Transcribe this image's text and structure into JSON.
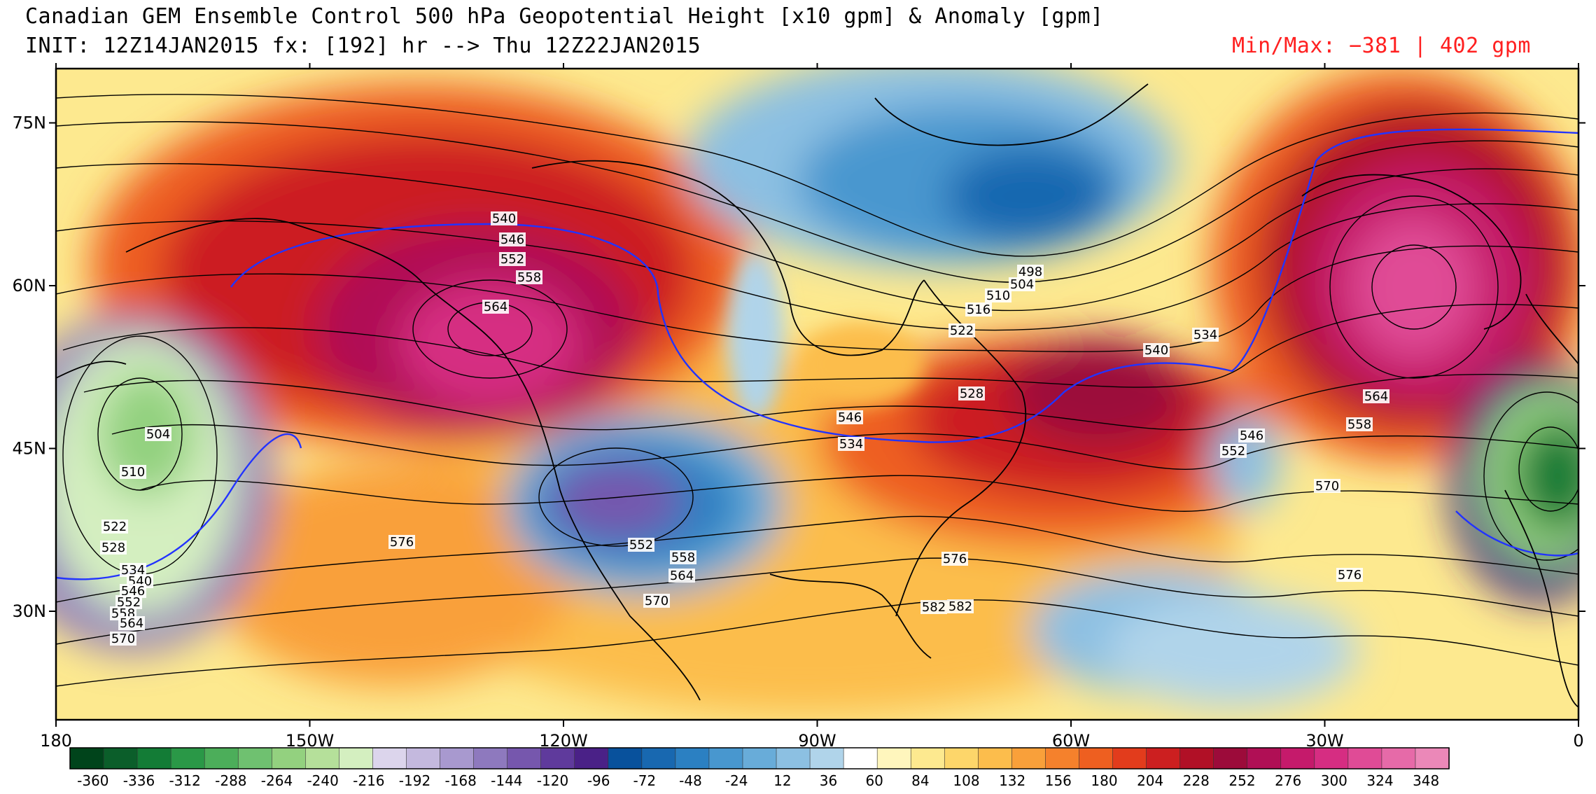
{
  "header": {
    "title": "Canadian GEM Ensemble Control 500 hPa Geopotential Height [x10 gpm] & Anomaly [gpm]",
    "subtitle": "INIT: 12Z14JAN2015 fx: [192] hr --> Thu 12Z22JAN2015",
    "minmax": "Min/Max:  −381 |   402 gpm"
  },
  "axes": {
    "lon_labels": [
      "180",
      "150W",
      "120W",
      "90W",
      "60W",
      "30W",
      "0"
    ],
    "lat_labels": [
      "75N",
      "60N",
      "45N",
      "30N"
    ]
  },
  "colorbar": {
    "labels": [
      "-360",
      "-336",
      "-312",
      "-288",
      "-264",
      "-240",
      "-216",
      "-192",
      "-168",
      "-144",
      "-120",
      "-96",
      "-72",
      "-48",
      "-24",
      "12",
      "36",
      "60",
      "84",
      "108",
      "132",
      "156",
      "180",
      "204",
      "228",
      "252",
      "276",
      "300",
      "324",
      "348"
    ],
    "colors": [
      "#00441b",
      "#0b5e2a",
      "#137c36",
      "#2a9847",
      "#4cae5a",
      "#6fc170",
      "#93d17f",
      "#b5e09a",
      "#d4efc0",
      "#dcd5ec",
      "#c4b9de",
      "#a899cf",
      "#8e79be",
      "#7657ad",
      "#5f3a9c",
      "#4a2187",
      "#08519c",
      "#1868b0",
      "#2b80c2",
      "#4897cf",
      "#68acd9",
      "#8cc0e2",
      "#b0d4ea",
      "#ffffff",
      "#fff6bd",
      "#fde98f",
      "#fdd66a",
      "#fcbd4c",
      "#f9a03a",
      "#f5812c",
      "#ee5f20",
      "#e23c1c",
      "#cc1f20",
      "#b11026",
      "#9c0b3a",
      "#b00f55",
      "#c51a6b",
      "#d62d82",
      "#e04b96",
      "#e66aa8",
      "#eb88b8"
    ]
  },
  "contour_labels": [
    "540",
    "546",
    "552",
    "558",
    "564",
    "498",
    "504",
    "510",
    "516",
    "522",
    "528",
    "534",
    "540",
    "546",
    "552",
    "558",
    "564",
    "570",
    "576",
    "582",
    "504",
    "510",
    "522",
    "528",
    "534",
    "540",
    "546",
    "552",
    "558",
    "564",
    "570",
    "576",
    "552",
    "558",
    "564",
    "570",
    "546",
    "534",
    "576",
    "582"
  ],
  "anomaly_centers": [
    {
      "name": "gulf-of-alaska-ridge",
      "sign": "positive"
    },
    {
      "name": "western-us-trough",
      "sign": "negative"
    },
    {
      "name": "hudson-bay-low",
      "sign": "negative"
    },
    {
      "name": "greenland-ridge",
      "sign": "positive"
    },
    {
      "name": "north-pacific-low",
      "sign": "negative"
    },
    {
      "name": "europe-low",
      "sign": "negative"
    }
  ]
}
